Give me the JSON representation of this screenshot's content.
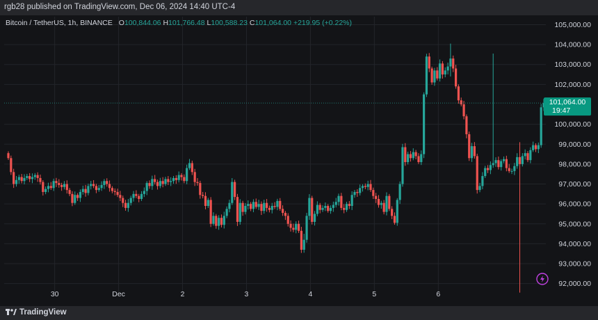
{
  "header": {
    "published": "rgb28 published on TradingView.com, Dec 06, 2024 14:40 UTC-4"
  },
  "legend": {
    "symbol": "Bitcoin / TetherUS, 1h, BINANCE",
    "o_label": "O",
    "o_value": "100,844.06",
    "h_label": "H",
    "h_value": "101,766.48",
    "l_label": "L",
    "l_value": "100,588.23",
    "c_label": "C",
    "c_value": "101,064.00",
    "change": "+219.95 (+0.22%)"
  },
  "price_tag": {
    "price": "101,064.00",
    "countdown": "19:47"
  },
  "footer": {
    "brand": "TradingView"
  },
  "colors": {
    "up": "#26a69a",
    "down": "#ef5350",
    "background": "#131417",
    "grid": "#23252a"
  },
  "icons": {
    "logo": "tradingview-logo-icon",
    "lightning": "lightning-icon"
  },
  "chart_data": {
    "type": "candlestick",
    "title": "Bitcoin / TetherUS, 1h, BINANCE",
    "ylim": [
      91500,
      105400
    ],
    "y_ticks": [
      {
        "value": 105000,
        "label": "105,000.00"
      },
      {
        "value": 104000,
        "label": "104,000.00"
      },
      {
        "value": 103000,
        "label": "103,000.00"
      },
      {
        "value": 102000,
        "label": "102,000.00"
      },
      {
        "value": 100000,
        "label": "100,000.00"
      },
      {
        "value": 99000,
        "label": "99,000.00"
      },
      {
        "value": 98000,
        "label": "98,000.00"
      },
      {
        "value": 97000,
        "label": "97,000.00"
      },
      {
        "value": 96000,
        "label": "96,000.00"
      },
      {
        "value": 95000,
        "label": "95,000.00"
      },
      {
        "value": 94000,
        "label": "94,000.00"
      },
      {
        "value": 93000,
        "label": "93,000.00"
      },
      {
        "value": 92000,
        "label": "92,000.00"
      }
    ],
    "x_ticks": [
      {
        "hour": 17.4,
        "label": "30"
      },
      {
        "hour": 41.4,
        "label": "Dec"
      },
      {
        "hour": 65.4,
        "label": "2"
      },
      {
        "hour": 89.4,
        "label": "3"
      },
      {
        "hour": 113.4,
        "label": "4"
      },
      {
        "hour": 137.4,
        "label": "5"
      },
      {
        "hour": 161.4,
        "label": "6"
      }
    ],
    "last_price": 101064,
    "x_max": 172,
    "closes": [
      98300,
      97600,
      97000,
      97200,
      97350,
      97150,
      97300,
      97400,
      97250,
      97350,
      97450,
      97300,
      97100,
      96600,
      96750,
      96900,
      96800,
      97150,
      97050,
      96950,
      96850,
      97000,
      96700,
      96500,
      96050,
      96450,
      96300,
      96600,
      96750,
      96550,
      96900,
      97000,
      96900,
      96700,
      96800,
      96950,
      97150,
      97000,
      96800,
      96650,
      96600,
      96450,
      96300,
      96050,
      95800,
      96050,
      96300,
      96500,
      96400,
      96250,
      96500,
      96650,
      97050,
      96900,
      97250,
      97100,
      96900,
      97150,
      97000,
      97250,
      97100,
      97150,
      97300,
      97200,
      97450,
      97350,
      97150,
      97800,
      98050,
      97600,
      97100,
      97050,
      96450,
      96400,
      95900,
      96200,
      95000,
      95400,
      94900,
      95300,
      94950,
      95400,
      95750,
      96050,
      97100,
      96350,
      95100,
      96050,
      95600,
      95900,
      96000,
      95750,
      96100,
      95850,
      96000,
      95650,
      96050,
      95800,
      95700,
      95900,
      95850,
      96150,
      95750,
      95550,
      95400,
      95000,
      94800,
      94700,
      95000,
      94650,
      93700,
      94200,
      95400,
      96300,
      95100,
      95500,
      95950,
      95700,
      95800,
      95900,
      95650,
      95800,
      95950,
      96100,
      96400,
      95800,
      95700,
      96000,
      95900,
      96450,
      96600,
      96550,
      96800,
      96900,
      96850,
      97000,
      96700,
      96400,
      96250,
      95950,
      96050,
      95600,
      96400,
      95750,
      95400,
      95050,
      96200,
      97000,
      98850,
      98100,
      98500,
      98300,
      98600,
      98400,
      98100,
      98500,
      101500,
      103400,
      102800,
      102100,
      102700,
      102300,
      103050,
      102500,
      102700,
      102900,
      103300,
      102800,
      101900,
      101200,
      101000,
      100400,
      99500,
      98300,
      98900,
      98400,
      96700,
      96900,
      97400,
      97800,
      97700,
      97950,
      98050,
      98200,
      97850,
      98150,
      98250,
      97800,
      97650,
      97650,
      97900,
      98350,
      98000,
      98400,
      98550,
      98200,
      98700,
      98950,
      98750,
      98950,
      100850,
      101064
    ],
    "wick_events": [
      {
        "index": 192,
        "low": 91550,
        "high": 99100
      },
      {
        "index": 166,
        "low": 102400,
        "high": 104050
      },
      {
        "index": 182,
        "low": 102100,
        "high": 103550
      },
      {
        "index": 111,
        "low": 93550,
        "high": 94500
      }
    ]
  }
}
